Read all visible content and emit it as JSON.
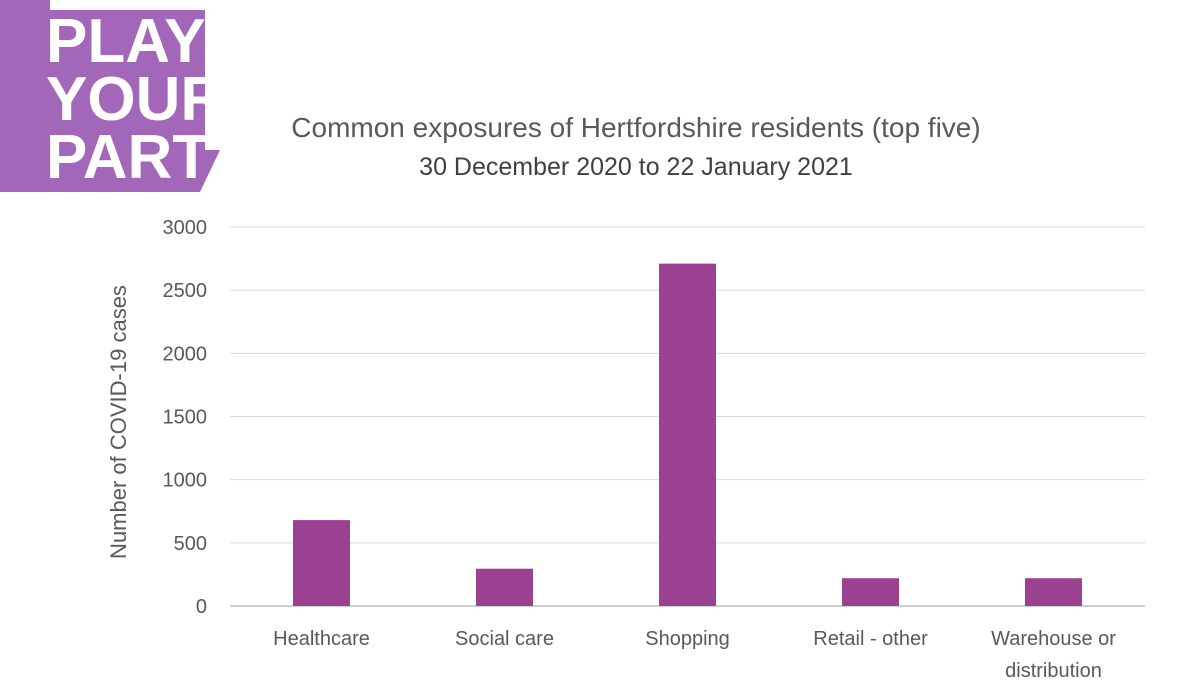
{
  "logo": {
    "lines": [
      "PLAY",
      "YOUR",
      "PART"
    ],
    "colors": {
      "background": "#A267B8",
      "text": "#FFFFFF"
    }
  },
  "chart_data": {
    "type": "bar",
    "title": "Common exposures of Hertfordshire residents (top five)",
    "subtitle": "30 December 2020 to 22 January 2021",
    "categories": [
      "Healthcare",
      "Social care",
      "Shopping",
      "Retail - other",
      "Warehouse or distribution"
    ],
    "category_lines": [
      [
        "Healthcare"
      ],
      [
        "Social care"
      ],
      [
        "Shopping"
      ],
      [
        "Retail - other"
      ],
      [
        "Warehouse or",
        "distribution"
      ]
    ],
    "values": [
      680,
      295,
      2710,
      220,
      220
    ],
    "xlabel": "",
    "ylabel": "Number of COVID-19 cases",
    "ylim": [
      0,
      3000
    ],
    "yticks": [
      0,
      500,
      1000,
      1500,
      2000,
      2500,
      3000
    ],
    "grid": true,
    "legend": "none",
    "colors": {
      "bar": "#9B4192",
      "grid": "#D9D9D9",
      "axis": "#BFBFBF",
      "text": "#595959"
    }
  }
}
